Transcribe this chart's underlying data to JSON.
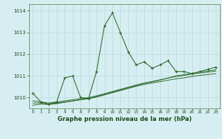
{
  "title": "Graphe pression niveau de la mer (hPa)",
  "background_color": "#d6eef2",
  "grid_color": "#b8d8d8",
  "line_color": "#2d6a2d",
  "xlim": [
    -0.5,
    23.5
  ],
  "ylim": [
    1009.5,
    1014.3
  ],
  "yticks": [
    1010,
    1011,
    1012,
    1013,
    1014
  ],
  "xticks": [
    0,
    1,
    2,
    3,
    4,
    5,
    6,
    7,
    8,
    9,
    10,
    11,
    12,
    13,
    14,
    15,
    16,
    17,
    18,
    19,
    20,
    21,
    22,
    23
  ],
  "series1": [
    1010.2,
    1009.8,
    1009.7,
    1009.8,
    1010.9,
    1011.0,
    1010.0,
    1009.95,
    1011.2,
    1013.3,
    1013.9,
    1013.0,
    1012.1,
    1011.5,
    1011.65,
    1011.35,
    1011.5,
    1011.7,
    1011.2,
    1011.2,
    1011.1,
    1011.2,
    1011.3,
    1011.4
  ],
  "series2": [
    1009.75,
    1009.75,
    1009.7,
    1009.75,
    1009.8,
    1009.85,
    1009.9,
    1009.95,
    1010.05,
    1010.15,
    1010.25,
    1010.35,
    1010.45,
    1010.55,
    1010.65,
    1010.72,
    1010.8,
    1010.9,
    1011.0,
    1011.05,
    1011.12,
    1011.18,
    1011.22,
    1011.28
  ],
  "series3": [
    1009.85,
    1009.8,
    1009.75,
    1009.8,
    1009.85,
    1009.9,
    1009.95,
    1010.0,
    1010.08,
    1010.18,
    1010.28,
    1010.38,
    1010.48,
    1010.58,
    1010.67,
    1010.74,
    1010.82,
    1010.9,
    1010.97,
    1011.02,
    1011.08,
    1011.13,
    1011.17,
    1011.22
  ],
  "series4": [
    1009.65,
    1009.7,
    1009.68,
    1009.72,
    1009.78,
    1009.84,
    1009.9,
    1009.95,
    1010.02,
    1010.12,
    1010.22,
    1010.32,
    1010.42,
    1010.52,
    1010.6,
    1010.67,
    1010.73,
    1010.8,
    1010.86,
    1010.91,
    1010.97,
    1011.02,
    1011.06,
    1011.1
  ]
}
